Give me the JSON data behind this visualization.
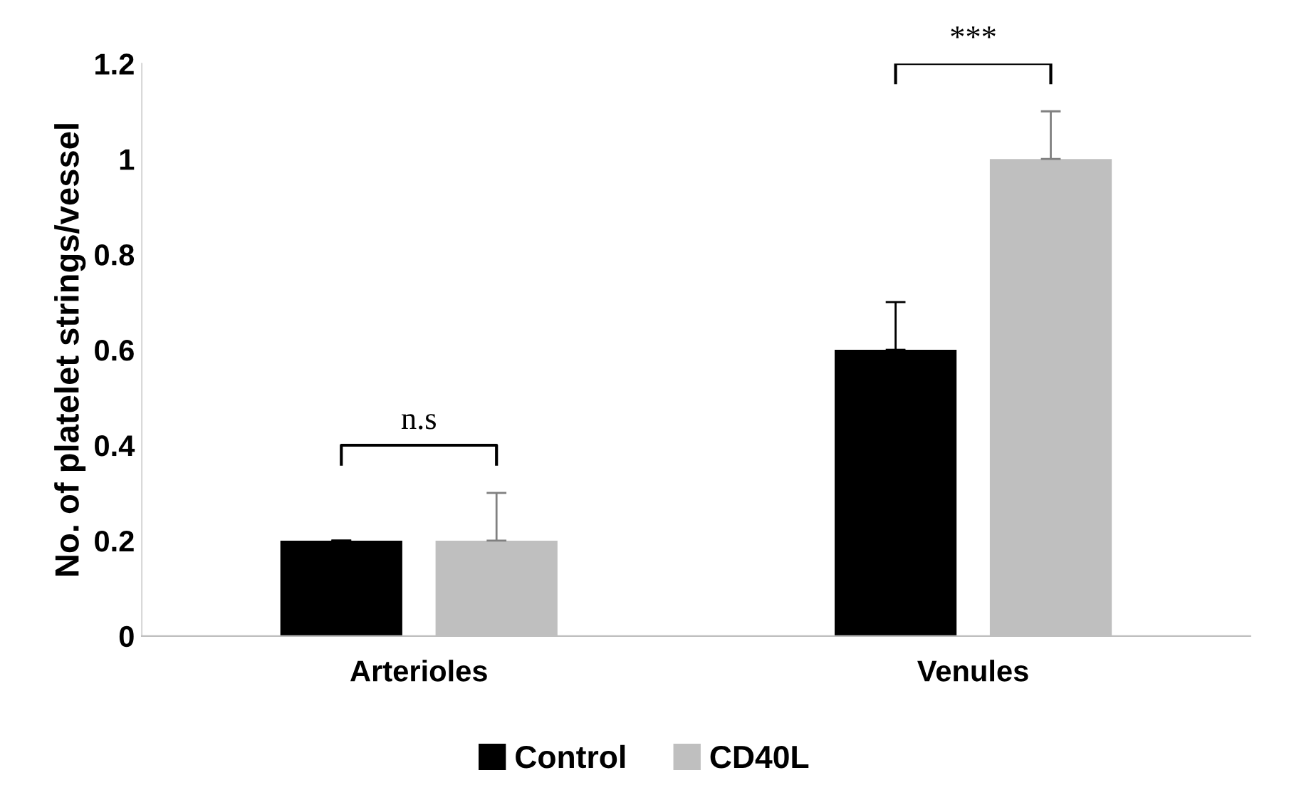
{
  "chart_data": {
    "type": "bar",
    "ylabel": "No. of platelet strings/vessel",
    "categories": [
      "Arterioles",
      "Venules"
    ],
    "series": [
      {
        "name": "Control",
        "color": "#000000",
        "values": [
          0.2,
          0.6
        ],
        "errors": [
          [
            0.2,
            0.2
          ],
          [
            0.6,
            0.7
          ]
        ]
      },
      {
        "name": "CD40L",
        "color": "#bfbfbf",
        "values": [
          0.2,
          1.0
        ],
        "errors": [
          [
            0.2,
            0.3
          ],
          [
            1.0,
            1.1
          ]
        ]
      }
    ],
    "ylim": [
      0,
      1.2
    ],
    "yticks": [
      0,
      0.2,
      0.4,
      0.6,
      0.8,
      1,
      1.2
    ],
    "grid": false,
    "legend": "bottom",
    "annotations": [
      "n.s",
      "***"
    ]
  }
}
